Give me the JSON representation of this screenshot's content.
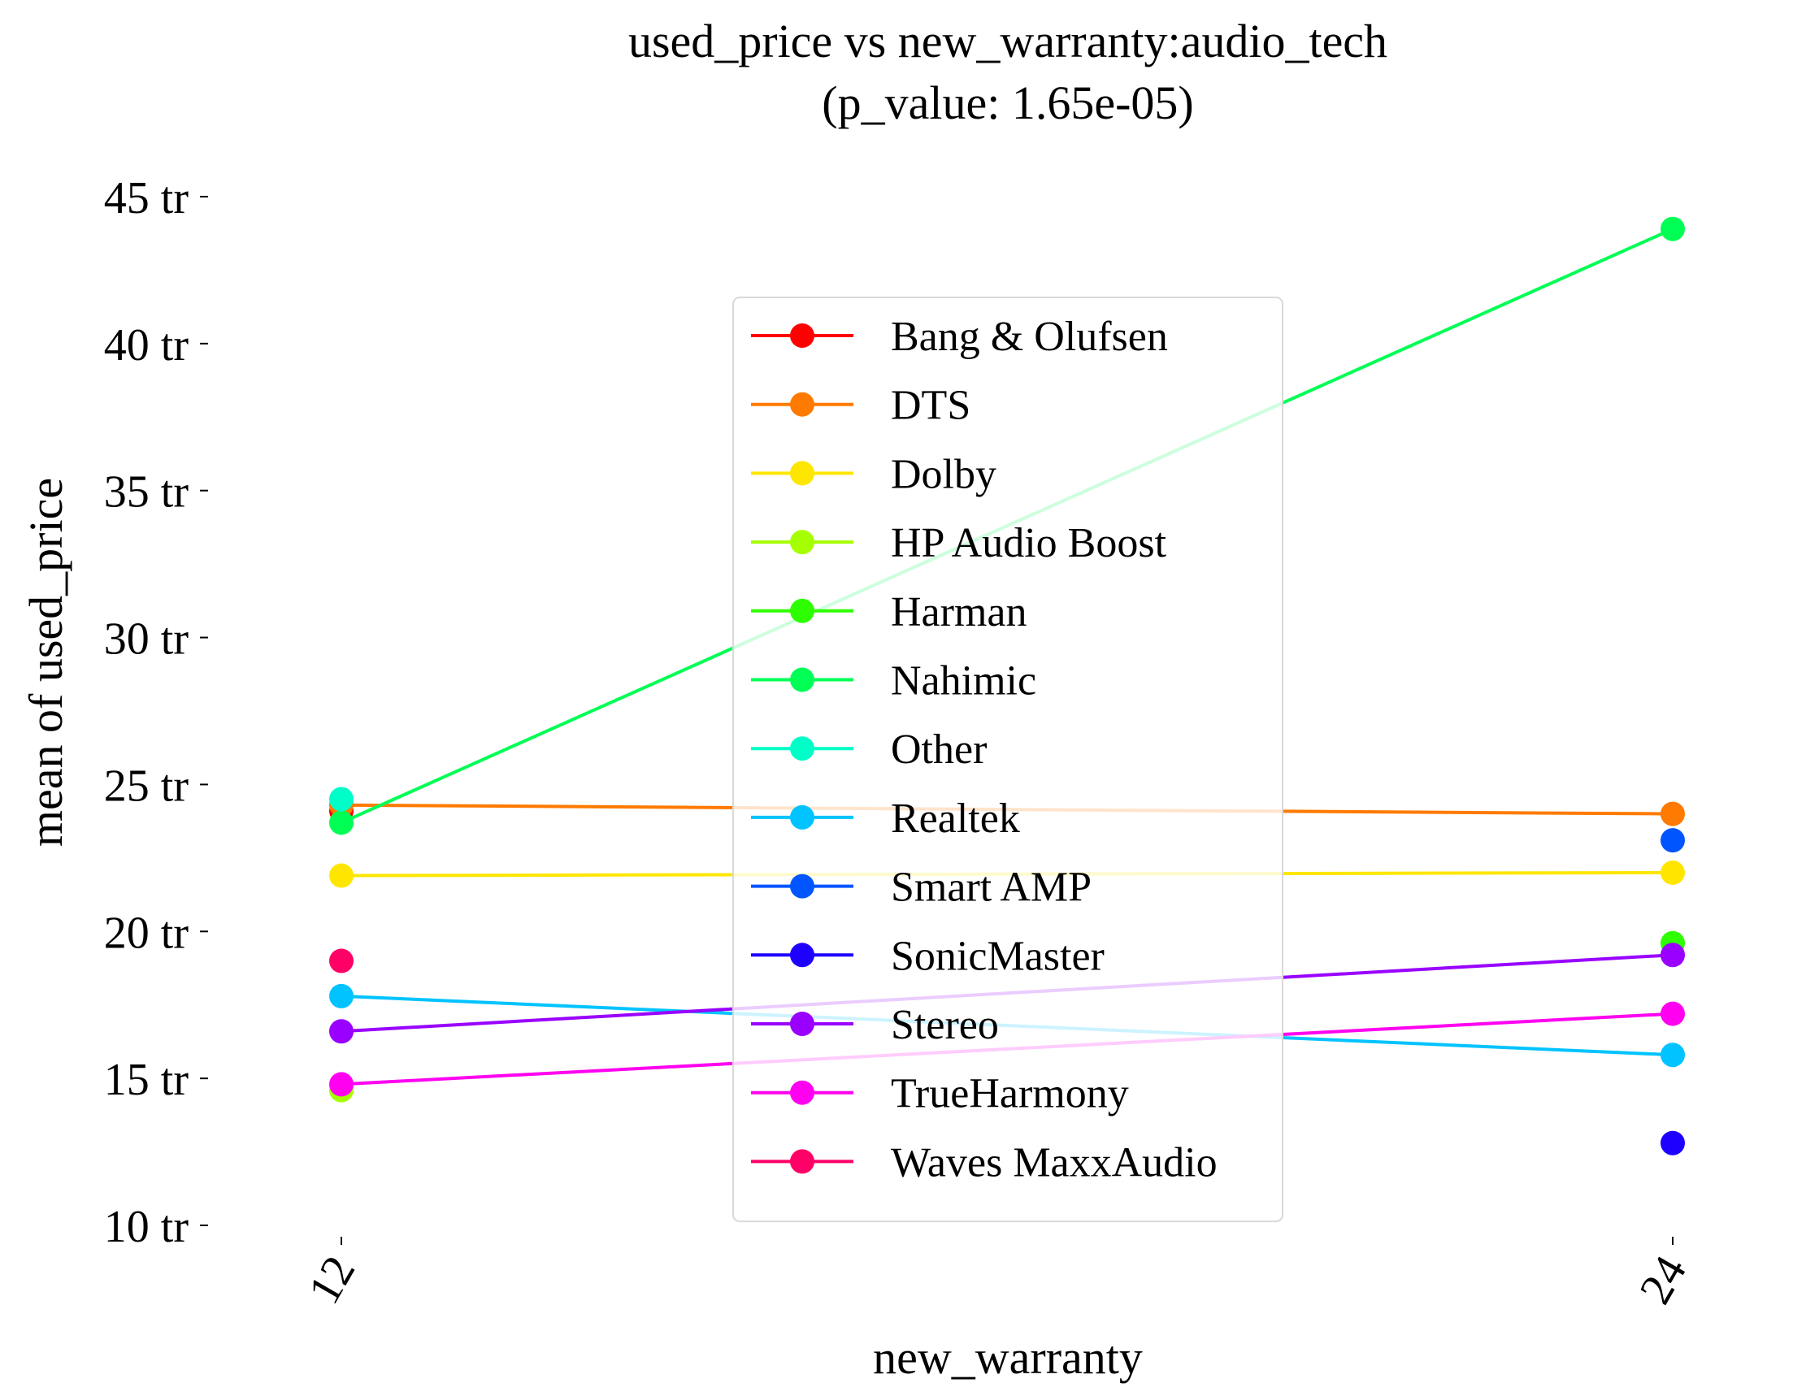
{
  "chart_data": {
    "type": "line",
    "title_line1": "used_price vs new_warranty:audio_tech",
    "title_line2": "(p_value: 1.65e-05)",
    "xlabel": "new_warranty",
    "ylabel": "mean of used_price",
    "categories": [
      "12",
      "24"
    ],
    "ylim": [
      10,
      45
    ],
    "yticks": [
      10,
      15,
      20,
      25,
      30,
      35,
      40,
      45
    ],
    "ytick_suffix": " tr",
    "grid": false,
    "legend_position": "center",
    "series": [
      {
        "name": "Bang & Olufsen",
        "color": "#ff0000",
        "values": [
          24.1,
          null
        ]
      },
      {
        "name": "DTS",
        "color": "#ff7a00",
        "values": [
          24.3,
          24.0
        ]
      },
      {
        "name": "Dolby",
        "color": "#ffe600",
        "values": [
          21.9,
          22.0
        ]
      },
      {
        "name": "HP Audio Boost",
        "color": "#a6ff00",
        "values": [
          14.6,
          null
        ]
      },
      {
        "name": "Harman",
        "color": "#2eff00",
        "values": [
          null,
          19.6
        ]
      },
      {
        "name": "Nahimic",
        "color": "#00ff55",
        "values": [
          23.7,
          43.9
        ]
      },
      {
        "name": "Other",
        "color": "#00ffc8",
        "values": [
          24.5,
          null
        ]
      },
      {
        "name": "Realtek",
        "color": "#00c3ff",
        "values": [
          17.8,
          15.8
        ]
      },
      {
        "name": "Smart AMP",
        "color": "#0055ff",
        "values": [
          null,
          23.1
        ]
      },
      {
        "name": "SonicMaster",
        "color": "#1e00ff",
        "values": [
          null,
          12.8
        ]
      },
      {
        "name": "Stereo",
        "color": "#9900ff",
        "values": [
          16.6,
          19.2
        ]
      },
      {
        "name": "TrueHarmony",
        "color": "#ff00f0",
        "values": [
          14.8,
          17.2
        ]
      },
      {
        "name": "Waves MaxxAudio",
        "color": "#ff0066",
        "values": [
          19.0,
          null
        ]
      }
    ]
  }
}
